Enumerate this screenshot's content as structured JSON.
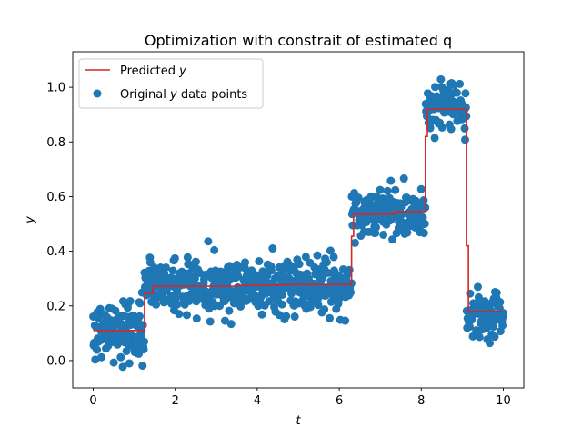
{
  "chart_data": {
    "type": "scatter",
    "title": "Optimization with constrait of estimated q",
    "xlabel": "t",
    "ylabel": "y",
    "xlim": [
      -0.5,
      10.5
    ],
    "ylim": [
      -0.1,
      1.13
    ],
    "xticks": [
      0,
      2,
      4,
      6,
      8,
      10
    ],
    "yticks": [
      0.0,
      0.2,
      0.4,
      0.6,
      0.8,
      1.0
    ],
    "xtick_labels": [
      "0",
      "2",
      "4",
      "6",
      "8",
      "10"
    ],
    "ytick_labels": [
      "0.0",
      "0.2",
      "0.4",
      "0.6",
      "0.8",
      "1.0"
    ],
    "grid": false,
    "legend_position": "upper-left",
    "colors": {
      "predicted": "#d62728",
      "original": "#1f77b4"
    },
    "series": [
      {
        "name": "Predicted y",
        "kind": "step-line",
        "x": [
          0,
          1.25,
          1.25,
          1.45,
          1.45,
          3.5,
          3.5,
          4.6,
          4.6,
          6.3,
          6.3,
          6.35,
          6.35,
          7.35,
          7.35,
          8.1,
          8.1,
          8.15,
          8.15,
          9.1,
          9.1,
          9.15,
          9.15,
          10
        ],
        "y": [
          0.11,
          0.11,
          0.245,
          0.245,
          0.272,
          0.272,
          0.275,
          0.275,
          0.278,
          0.278,
          0.455,
          0.455,
          0.535,
          0.535,
          0.545,
          0.545,
          0.82,
          0.82,
          0.92,
          0.92,
          0.42,
          0.42,
          0.18,
          0.18
        ]
      },
      {
        "name": "Original y data points",
        "kind": "scatter",
        "segments": [
          {
            "t_start": 0.0,
            "t_end": 1.25,
            "level": 0.11,
            "spread": 0.055
          },
          {
            "t_start": 1.25,
            "t_end": 6.3,
            "level": 0.275,
            "spread": 0.05
          },
          {
            "t_start": 6.3,
            "t_end": 8.1,
            "level": 0.54,
            "spread": 0.045
          },
          {
            "t_start": 8.1,
            "t_end": 9.1,
            "level": 0.93,
            "spread": 0.045
          },
          {
            "t_start": 9.1,
            "t_end": 10.0,
            "level": 0.17,
            "spread": 0.045
          }
        ],
        "n_points": 1000
      }
    ]
  },
  "legend": {
    "entries": [
      {
        "prefix": "Predicted ",
        "var": "y",
        "suffix": ""
      },
      {
        "prefix": "Original ",
        "var": "y",
        "suffix": " data points"
      }
    ]
  }
}
